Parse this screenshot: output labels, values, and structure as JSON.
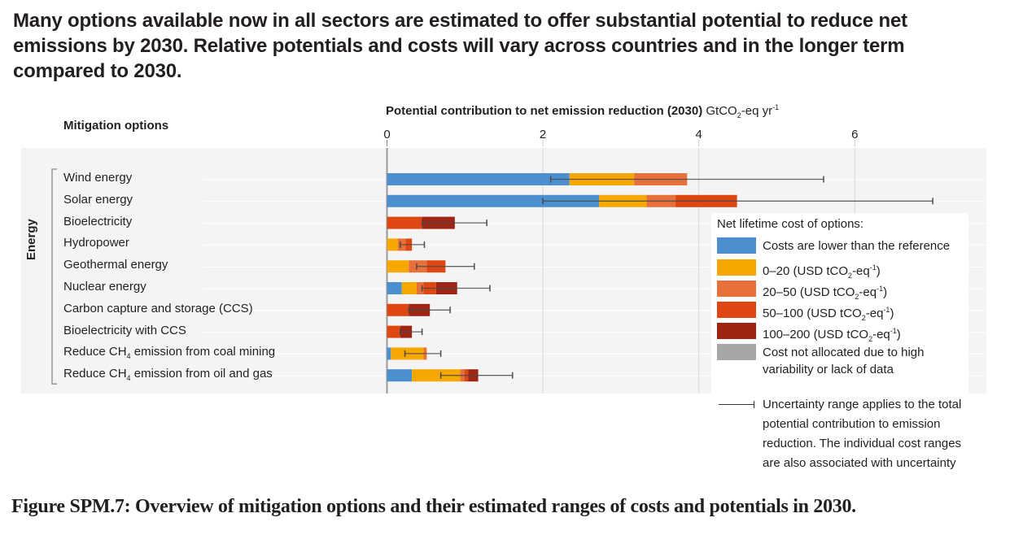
{
  "headline": "Many options available now in all sectors are estimated to offer substantial potential to reduce net emissions by 2030. Relative potentials and costs will vary across countries and in the longer term compared to 2030.",
  "caption": "Figure SPM.7: Overview of mitigation options and their estimated ranges of costs and potentials in 2030.",
  "mitigation_header": "Mitigation options",
  "chart_data": {
    "type": "bar",
    "orientation": "horizontal",
    "stacked": true,
    "title": "",
    "xlabel": "Potential contribution to net emission reduction (2030)",
    "xlabel_unit": "GtCO2-eq yr-1",
    "ylabel": "Mitigation options",
    "xlim": [
      0,
      7.8
    ],
    "xticks": [
      0,
      2,
      4,
      6
    ],
    "grid": true,
    "sector": "Energy",
    "legend_title": "Net lifetime cost of options:",
    "legend_position": "right",
    "series": [
      {
        "name": "Costs are lower than the reference",
        "color": "#4b8fcf"
      },
      {
        "name": "0–20 (USD tCO2-eq-1)",
        "color": "#f7a800"
      },
      {
        "name": "20–50 (USD tCO2-eq-1)",
        "color": "#e8703a"
      },
      {
        "name": "50–100 (USD tCO2-eq-1)",
        "color": "#de4712"
      },
      {
        "name": "100–200 (USD tCO2-eq-1)",
        "color": "#9e2414"
      },
      {
        "name": "Cost not allocated due to high variability or lack of data",
        "color": "#a6a6a6"
      }
    ],
    "categories": [
      "Wind energy",
      "Solar energy",
      "Bioelectricity",
      "Hydropower",
      "Geothermal energy",
      "Nuclear energy",
      "Carbon capture and storage (CCS)",
      "Bioelectricity with CCS",
      "Reduce CH4 emission from coal mining",
      "Reduce CH4 emission from oil and gas"
    ],
    "label_main": [
      "Wind energy",
      "Solar energy",
      "Bioelectricity",
      "Hydropower",
      "Geothermal energy",
      "Nuclear energy",
      "Carbon capture and storage (CCS)",
      "Bioelectricity with CCS",
      "Reduce CH",
      "Reduce CH"
    ],
    "label_sub": [
      "",
      "",
      "",
      "",
      "",
      "",
      "",
      "",
      "4",
      "4"
    ],
    "label_tail": [
      "",
      "",
      "",
      "",
      "",
      "",
      "",
      "",
      " emission from coal mining",
      " emission from oil and gas"
    ],
    "values": [
      [
        2.34,
        0.83,
        0.68,
        0.0,
        0.0,
        0.0
      ],
      [
        2.72,
        0.61,
        0.37,
        0.79,
        0.0,
        0.0
      ],
      [
        0.0,
        0.0,
        0.0,
        0.45,
        0.42,
        0.0
      ],
      [
        0.0,
        0.14,
        0.1,
        0.08,
        0.0,
        0.0
      ],
      [
        0.0,
        0.28,
        0.23,
        0.24,
        0.0,
        0.0
      ],
      [
        0.19,
        0.19,
        0.09,
        0.16,
        0.27,
        0.0
      ],
      [
        0.0,
        0.0,
        0.0,
        0.28,
        0.27,
        0.0
      ],
      [
        0.0,
        0.0,
        0.0,
        0.17,
        0.15,
        0.0
      ],
      [
        0.05,
        0.42,
        0.04,
        0.0,
        0.0,
        0.0
      ],
      [
        0.32,
        0.62,
        0.05,
        0.05,
        0.13,
        0.0
      ]
    ],
    "uncertainty_range": [
      [
        2.1,
        5.6
      ],
      [
        2.0,
        7.0
      ],
      [
        0.45,
        1.28
      ],
      [
        0.17,
        0.48
      ],
      [
        0.38,
        1.12
      ],
      [
        0.45,
        1.32
      ],
      [
        0.28,
        0.81
      ],
      [
        0.17,
        0.45
      ],
      [
        0.23,
        0.69
      ],
      [
        0.69,
        1.61
      ]
    ],
    "uncertainty_note": "Uncertainty range applies to the total potential contribution to emission reduction. The individual cost ranges are also associated with uncertainty"
  },
  "legend": {
    "title": "Net lifetime cost of options:",
    "items": [
      {
        "label": "Costs are lower than the reference",
        "color": "#4b8fcf"
      },
      {
        "label": "0–20 (USD tCO",
        "sub": "2",
        "mid": "-eq",
        "sup": "-1",
        "end": ")",
        "color": "#f7a800"
      },
      {
        "label": "20–50 (USD tCO",
        "sub": "2",
        "mid": "-eq",
        "sup": "-1",
        "end": ")",
        "color": "#e8703a"
      },
      {
        "label": "50–100 (USD tCO",
        "sub": "2",
        "mid": "-eq",
        "sup": "-1",
        "end": ")",
        "color": "#de4712"
      },
      {
        "label": "100–200 (USD tCO",
        "sub": "2",
        "mid": "-eq",
        "sup": "-1",
        "end": ")",
        "color": "#9e2414"
      },
      {
        "label": "Cost not allocated due to high variability or lack of data",
        "color": "#a6a6a6"
      }
    ],
    "uncertainty_text": "Uncertainty range applies to the total potential contribution to emission reduction. The individual cost ranges are also associated with uncertainty"
  },
  "axis": {
    "title_bold": "Potential contribution to net emission reduction (2030)",
    "unit_a": " GtCO",
    "unit_sub": "2",
    "unit_b": "-eq yr",
    "unit_sup": "-1"
  }
}
